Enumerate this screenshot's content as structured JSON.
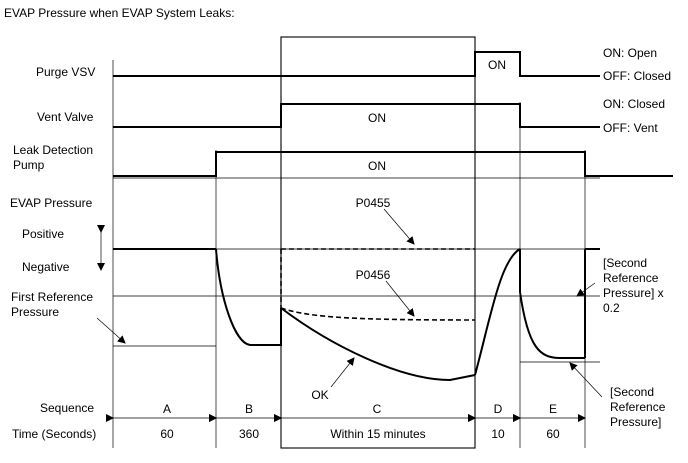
{
  "title": "EVAP Pressure when EVAP System Leaks:",
  "rows": {
    "purge_vsv": "Purge VSV",
    "vent_valve": "Vent Valve",
    "leak_pump_line1": "Leak Detection",
    "leak_pump_line2": "Pump",
    "evap_pressure": "EVAP Pressure",
    "positive": "Positive",
    "negative": "Negative",
    "first_ref_line1": "First Reference",
    "first_ref_line2": "Pressure",
    "sequence": "Sequence",
    "time": "Time (Seconds)"
  },
  "states": {
    "purge_on": "ON",
    "vent_on": "ON",
    "pump_on": "ON",
    "purge_on_desc": "ON: Open",
    "purge_off_desc": "OFF: Closed",
    "vent_on_desc": "ON: Closed",
    "vent_off_desc": "OFF: Vent"
  },
  "annotations": {
    "p0455": "P0455",
    "p0456": "P0456",
    "ok": "OK",
    "second_ref_x02_line1": "[Second",
    "second_ref_x02_line2": "Reference",
    "second_ref_x02_line3": "Pressure] x",
    "second_ref_x02_line4": "0.2",
    "second_ref_line1": "[Second",
    "second_ref_line2": "Reference",
    "second_ref_line3": "Pressure]"
  },
  "sequence": {
    "a": "A",
    "b": "B",
    "c": "C",
    "d": "D",
    "e": "E"
  },
  "time": {
    "a": "60",
    "b": "360",
    "c": "Within 15 minutes",
    "d": "10",
    "e": "60"
  }
}
